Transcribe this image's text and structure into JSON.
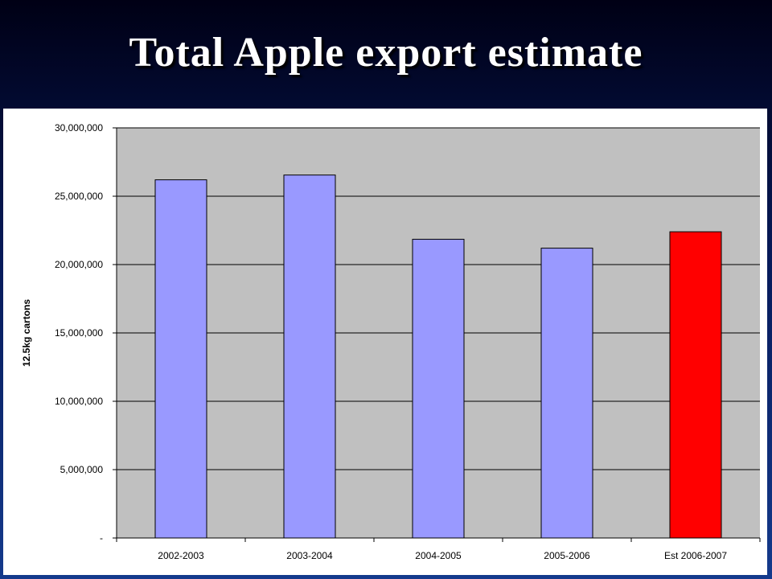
{
  "slide": {
    "title": "Total Apple export estimate"
  },
  "chart_data": {
    "type": "bar",
    "title": "",
    "xlabel": "",
    "ylabel": "12.5kg cartons",
    "categories": [
      "2002-2003",
      "2003-2004",
      "2004-2005",
      "2005-2006",
      "Est 2006-2007"
    ],
    "values": [
      26200000,
      26550000,
      21850000,
      21200000,
      22400000
    ],
    "bar_colors": [
      "#9999ff",
      "#9999ff",
      "#9999ff",
      "#9999ff",
      "#ff0000"
    ],
    "ylim": [
      0,
      30000000
    ],
    "yticks": [
      0,
      5000000,
      10000000,
      15000000,
      20000000,
      25000000,
      30000000
    ],
    "ytick_labels": [
      "-",
      "5,000,000",
      "10,000,000",
      "15,000,000",
      "20,000,000",
      "25,000,000",
      "30,000,000"
    ],
    "plot_background": "#c0c0c0",
    "grid": true,
    "legend": "none"
  }
}
